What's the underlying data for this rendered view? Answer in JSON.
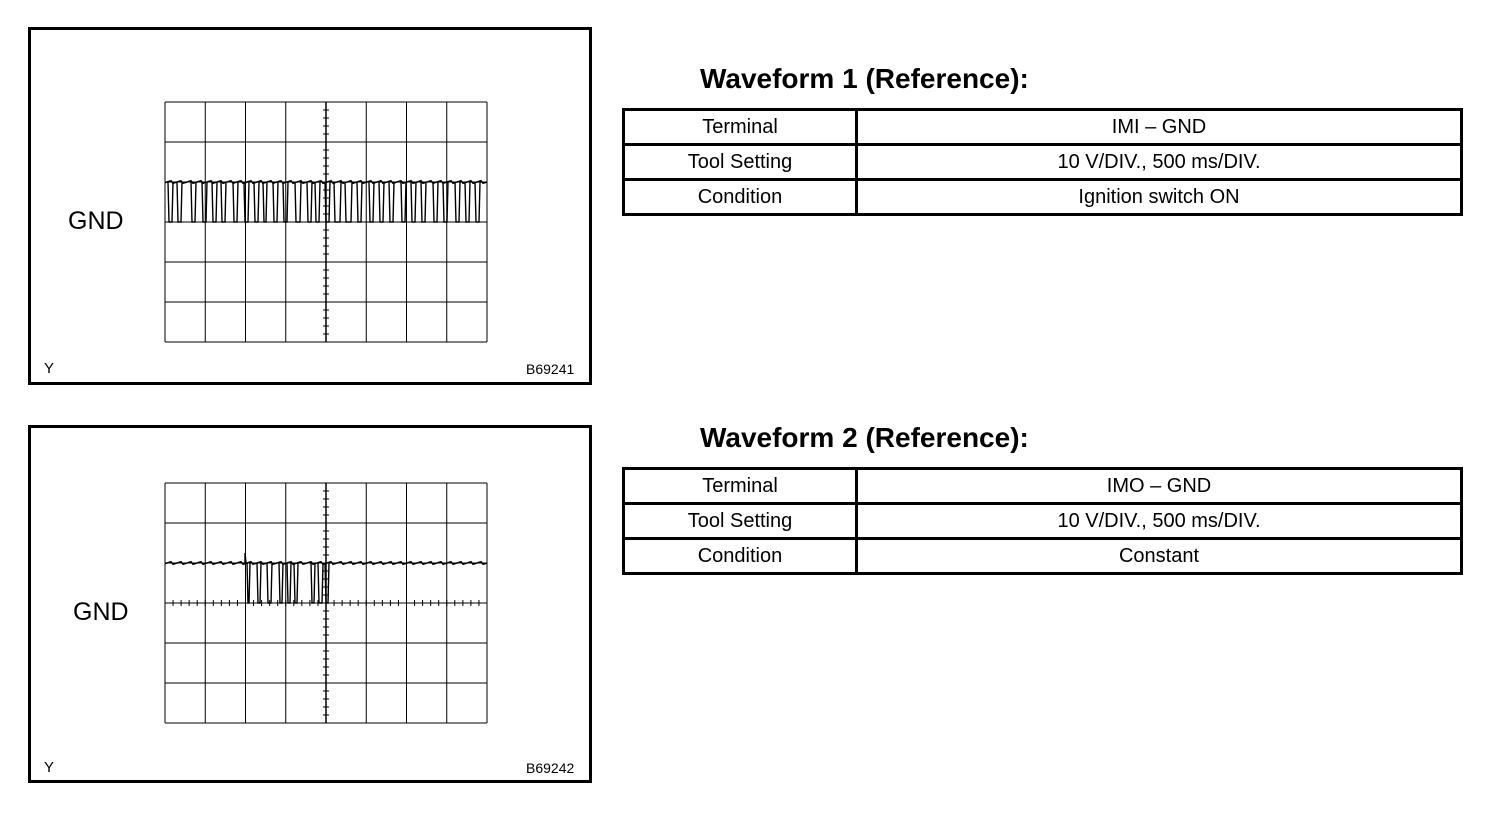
{
  "panels": [
    {
      "gnd_label": "GND",
      "corner_label": "Y",
      "figure_code": "B69241",
      "title": "Waveform 1 (Reference):",
      "rows": [
        {
          "label": "Terminal",
          "value": "IMI – GND"
        },
        {
          "label": "Tool Setting",
          "value": "10 V/DIV., 500 ms/DIV."
        },
        {
          "label": "Condition",
          "value": "Ignition switch ON"
        }
      ]
    },
    {
      "gnd_label": "GND",
      "corner_label": "Y",
      "figure_code": "B69242",
      "title": "Waveform 2 (Reference):",
      "rows": [
        {
          "label": "Terminal",
          "value": "IMO – GND"
        },
        {
          "label": "Tool Setting",
          "value": "10 V/DIV., 500 ms/DIV."
        },
        {
          "label": "Condition",
          "value": "Constant"
        }
      ]
    }
  ]
}
